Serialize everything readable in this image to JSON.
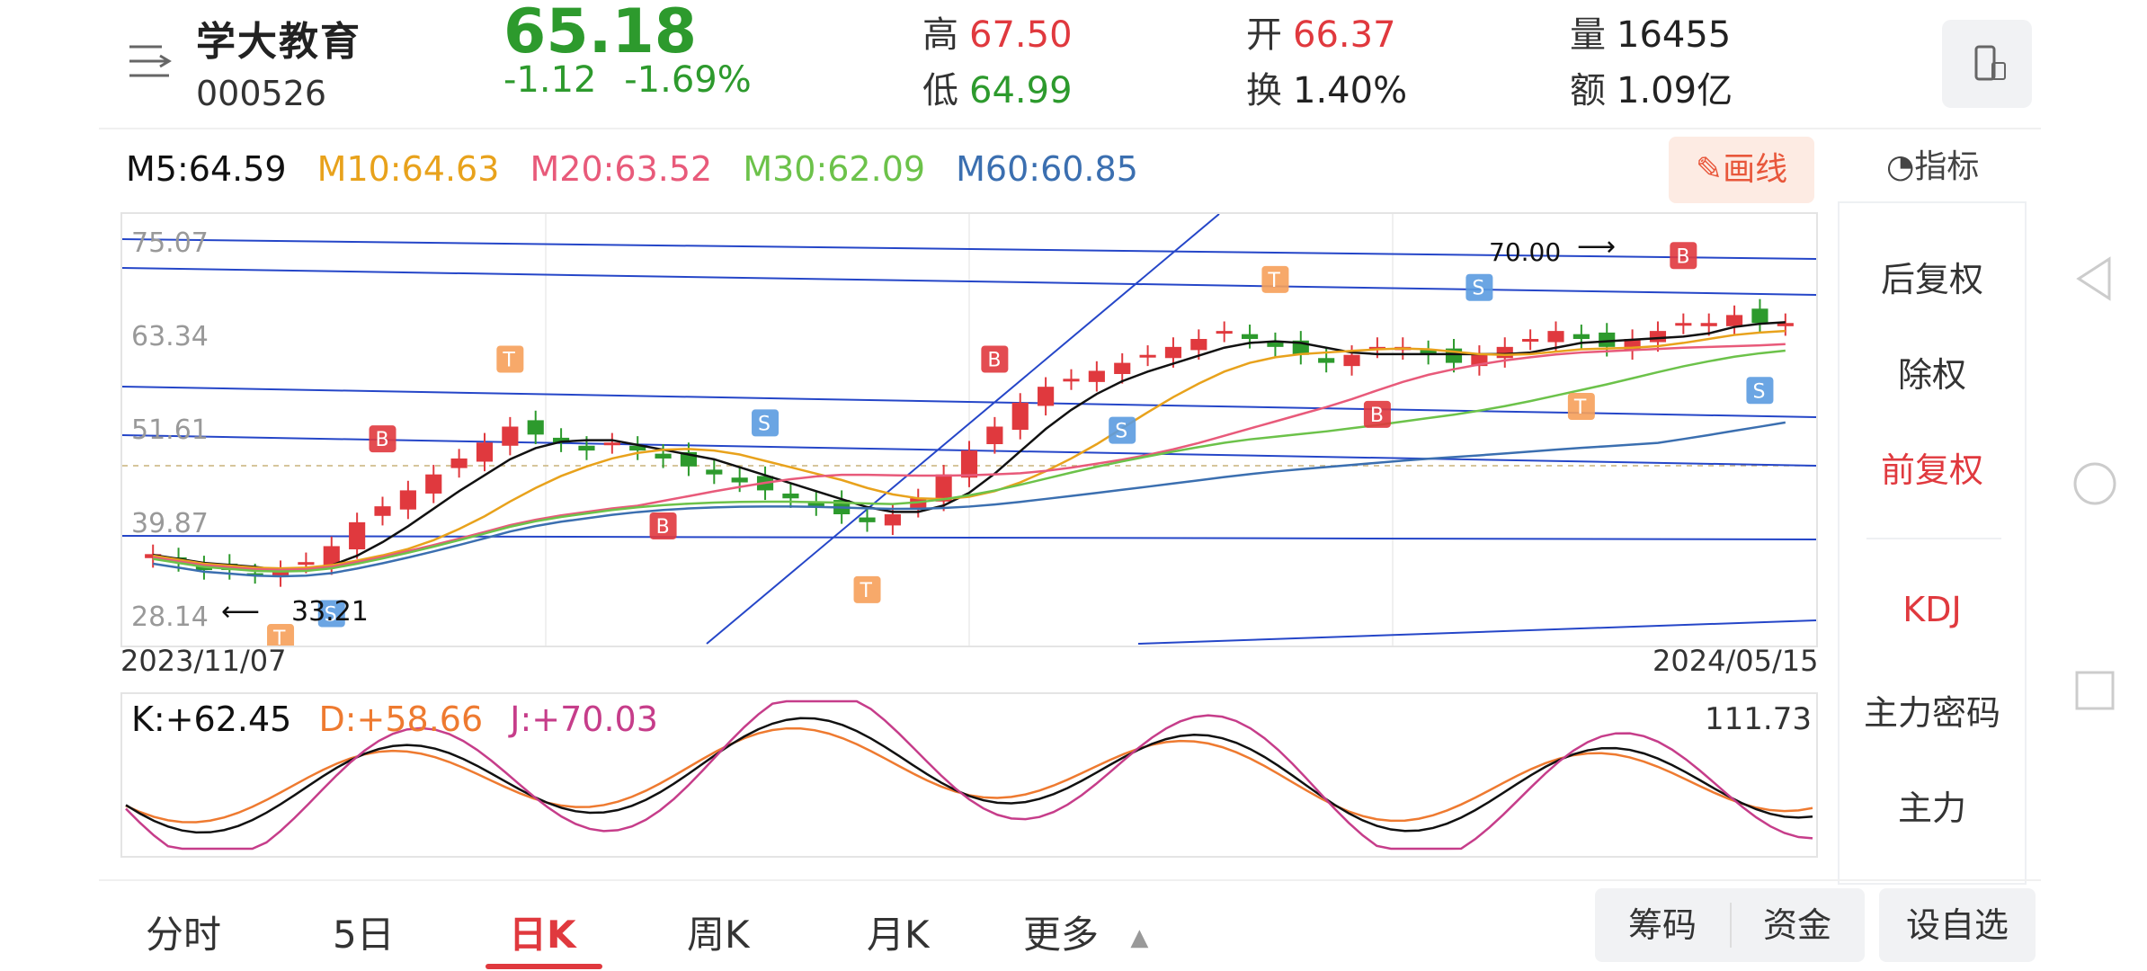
{
  "header": {
    "name": "学大教育",
    "code": "000526",
    "price": "65.18",
    "change": "-1.12",
    "change_pct": "-1.69%",
    "high_label": "高",
    "high": "67.50",
    "low_label": "低",
    "low": "64.99",
    "open_label": "开",
    "open": "66.37",
    "turnover_label": "换",
    "turnover": "1.40%",
    "volume_label": "量",
    "volume": "16455",
    "amount_label": "额",
    "amount": "1.09亿"
  },
  "ma": {
    "m5": "M5:64.59",
    "m10": "M10:64.63",
    "m20": "M20:63.52",
    "m30": "M30:62.09",
    "m60": "M60:60.85"
  },
  "toolbar": {
    "draw_label": "画线",
    "indicator_label": "指标"
  },
  "side_panel": {
    "items": [
      "后复权",
      "除权",
      "前复权",
      "KDJ",
      "主力密码",
      "主力"
    ],
    "active": "前复权"
  },
  "main_chart": {
    "y_ticks": [
      "75.07",
      "63.34",
      "51.61",
      "39.87",
      "28.14"
    ],
    "start_date": "2023/11/07",
    "end_date": "2024/05/15",
    "low_annotation": "33.21",
    "high_annotation": "70.00"
  },
  "kdj": {
    "k": "K:+62.45",
    "d": "D:+58.66",
    "j": "J:+70.03",
    "max": "111.73"
  },
  "tabs": [
    "分时",
    "5日",
    "日K",
    "周K",
    "月K",
    "更多"
  ],
  "active_tab": "日K",
  "buttons": {
    "chips": "筹码",
    "funds": "资金",
    "watchlist": "设自选"
  },
  "colors": {
    "up": "#e0393e",
    "down": "#2d9a2d",
    "ma5": "#111111",
    "ma10": "#e8a21c",
    "ma20": "#e85a7a",
    "ma30": "#6cc24a",
    "ma60": "#3b6fb0",
    "trendline": "#2546c8",
    "k": "#111111",
    "d": "#ee7a30",
    "j": "#c63d8a"
  },
  "chart_data": {
    "type": "candlestick",
    "x_range": [
      "2023/11/07",
      "2024/05/15"
    ],
    "ylim": [
      28.14,
      75.07
    ],
    "ma_values": {
      "M5": 64.59,
      "M10": 64.63,
      "M20": 63.52,
      "M30": 62.09,
      "M60": 60.85
    },
    "close_series": [
      36,
      35,
      34,
      34,
      33.5,
      34,
      35,
      37,
      40,
      42,
      44,
      46,
      48,
      50,
      52,
      51,
      50,
      49,
      50,
      49,
      48,
      47,
      46,
      45,
      44,
      43,
      42,
      41,
      40,
      41,
      43,
      46,
      49,
      52,
      55,
      57,
      58,
      59,
      60,
      61,
      62,
      63,
      64,
      63,
      62,
      61,
      60,
      61,
      62,
      62,
      61,
      60,
      61,
      62,
      63,
      64,
      63,
      62,
      63,
      64,
      65,
      65,
      66,
      65,
      65
    ]
  }
}
